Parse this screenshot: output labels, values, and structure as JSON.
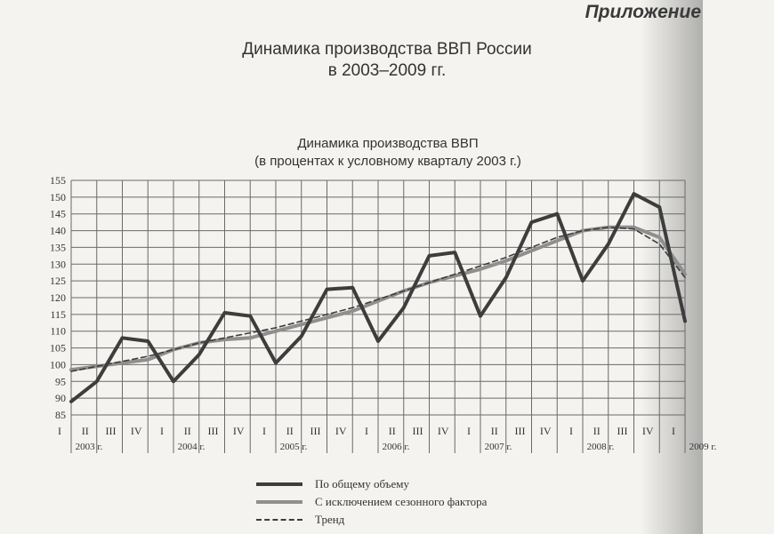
{
  "header": {
    "appendix": "Приложение",
    "title_line1": "Динамика производства ВВП России",
    "title_line2": "в 2003–2009 гг."
  },
  "chart_data": {
    "type": "line",
    "title_line1": "Динамика производства ВВП",
    "title_line2": "(в процентах к условному кварталу 2003 г.)",
    "xlabel": "",
    "ylabel": "",
    "ylim": [
      85,
      155
    ],
    "yticks": [
      85,
      90,
      95,
      100,
      105,
      110,
      115,
      120,
      125,
      130,
      135,
      140,
      145,
      150,
      155
    ],
    "grid": true,
    "categories": [
      "I",
      "II",
      "III",
      "IV",
      "I",
      "II",
      "III",
      "IV",
      "I",
      "II",
      "III",
      "IV",
      "I",
      "II",
      "III",
      "IV",
      "I",
      "II",
      "III",
      "IV",
      "I",
      "II",
      "III",
      "IV",
      "I"
    ],
    "years": [
      {
        "label": "2003 г.",
        "index": 0
      },
      {
        "label": "2004 г.",
        "index": 4
      },
      {
        "label": "2005 г.",
        "index": 8
      },
      {
        "label": "2006 г.",
        "index": 12
      },
      {
        "label": "2007 г.",
        "index": 16
      },
      {
        "label": "2008 г.",
        "index": 20
      },
      {
        "label": "2009 г.",
        "index": 24
      }
    ],
    "series": [
      {
        "name": "По общему объему",
        "style": "solid-dark",
        "color": "#3d3d3d",
        "values": [
          89,
          95,
          108,
          107,
          95,
          103,
          115.5,
          114.5,
          100.5,
          108.5,
          122.5,
          123,
          107,
          117,
          132.5,
          133.5,
          114.5,
          126,
          142.5,
          145,
          125,
          136,
          151,
          147,
          113
        ]
      },
      {
        "name": "С исключением сезонного фактора",
        "style": "solid-grey",
        "color": "#8f8f8f",
        "values": [
          98.5,
          99.5,
          100.5,
          101.5,
          104.5,
          106.5,
          107.5,
          108,
          110,
          112,
          114,
          116,
          119,
          122,
          124.5,
          126.5,
          128.5,
          131,
          134,
          137,
          140,
          141,
          141,
          138,
          127
        ]
      },
      {
        "name": "Тренд",
        "style": "dashed",
        "color": "#3d3d3d",
        "values": [
          98,
          99.5,
          101,
          102.5,
          104.5,
          106.5,
          108,
          109.5,
          111,
          113,
          115,
          117,
          119.5,
          122,
          124.5,
          127,
          129.5,
          132,
          135,
          138,
          140,
          141,
          140.5,
          136,
          126
        ]
      }
    ]
  }
}
